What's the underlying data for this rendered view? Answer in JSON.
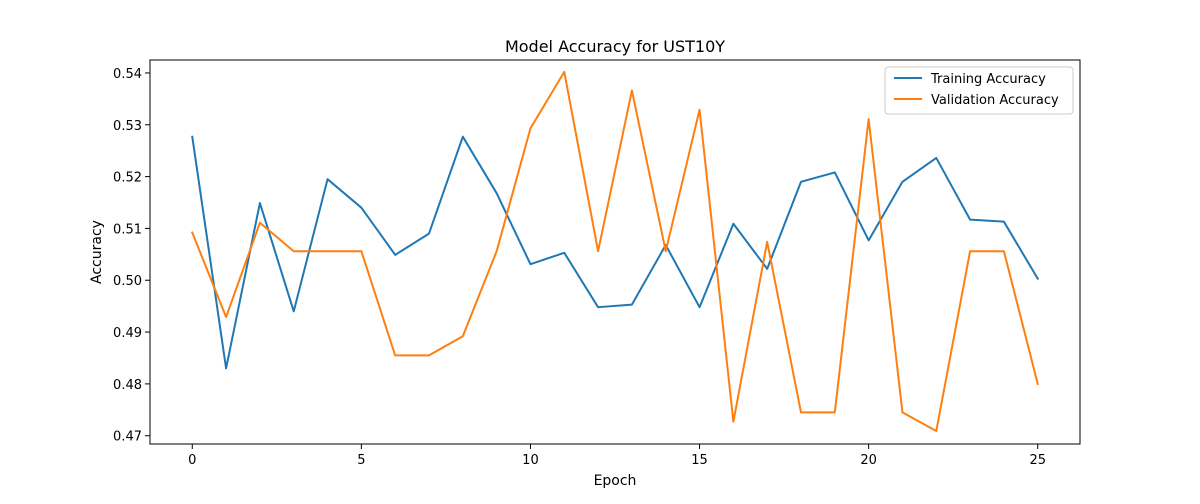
{
  "chart_data": {
    "type": "line",
    "title": "Model Accuracy for UST10Y",
    "xlabel": "Epoch",
    "ylabel": "Accuracy",
    "xlim": [
      -1.25,
      26.25
    ],
    "ylim": [
      0.4684,
      0.5425
    ],
    "xticks": [
      0,
      5,
      10,
      15,
      20,
      25
    ],
    "yticks": [
      0.47,
      0.48,
      0.49,
      0.5,
      0.51,
      0.52,
      0.53,
      0.54
    ],
    "xtick_labels": [
      "0",
      "5",
      "10",
      "15",
      "20",
      "25"
    ],
    "ytick_labels": [
      "0.47",
      "0.48",
      "0.49",
      "0.50",
      "0.51",
      "0.52",
      "0.53",
      "0.54"
    ],
    "grid": false,
    "legend_position": "top-right",
    "x": [
      0,
      1,
      2,
      3,
      4,
      5,
      6,
      7,
      8,
      9,
      10,
      11,
      12,
      13,
      14,
      15,
      16,
      17,
      18,
      19,
      20,
      21,
      22,
      23,
      24,
      25
    ],
    "series": [
      {
        "name": "Training Accuracy",
        "color": "#1f77b4",
        "values": [
          0.5277,
          0.483,
          0.5149,
          0.494,
          0.5195,
          0.514,
          0.5049,
          0.509,
          0.5277,
          0.5168,
          0.5031,
          0.5053,
          0.4948,
          0.4953,
          0.5068,
          0.4948,
          0.5109,
          0.5022,
          0.519,
          0.5208,
          0.5077,
          0.519,
          0.5236,
          0.5117,
          0.5113,
          0.5003
        ]
      },
      {
        "name": "Validation Accuracy",
        "color": "#ff7f0e",
        "values": [
          0.5092,
          0.4929,
          0.5111,
          0.5056,
          0.5056,
          0.5056,
          0.4855,
          0.4855,
          0.4892,
          0.5056,
          0.5293,
          0.5402,
          0.5056,
          0.5366,
          0.5056,
          0.5329,
          0.4727,
          0.5074,
          0.4745,
          0.4745,
          0.5311,
          0.4745,
          0.4709,
          0.5056,
          0.5056,
          0.48
        ]
      }
    ]
  }
}
